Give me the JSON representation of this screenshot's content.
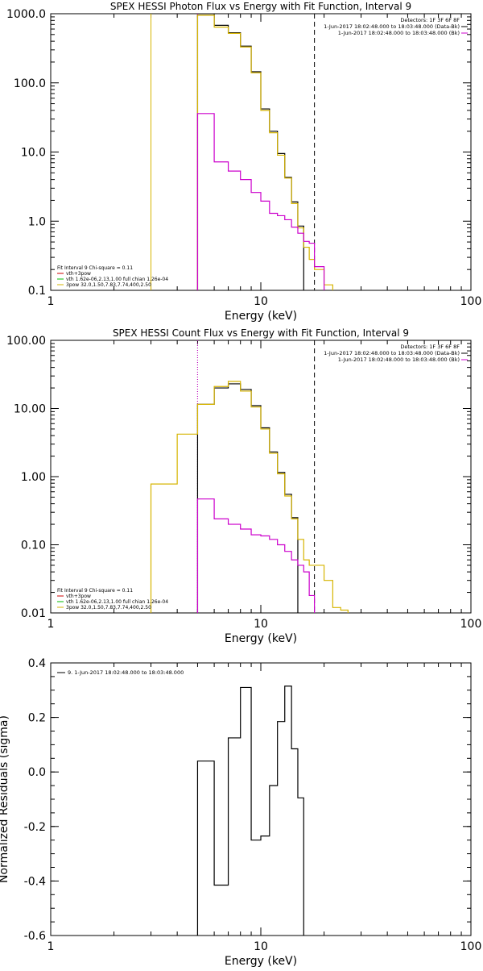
{
  "colors": {
    "black": "#000000",
    "yellow": "#d6b400",
    "magenta": "#cc00cc",
    "red": "#cc0000",
    "green": "#00bb00"
  },
  "chart_data": [
    {
      "type": "line",
      "title": "SPEX HESSI Photon Flux vs Energy with Fit Function, Interval 9",
      "xlabel": "Energy (keV)",
      "ylabel": "",
      "xscale": "log",
      "yscale": "log",
      "xlim": [
        1,
        100
      ],
      "ylim": [
        0.1,
        1000
      ],
      "xticks": [
        1,
        10,
        100
      ],
      "xticklabels": [
        "1",
        "10",
        "100"
      ],
      "yticks": [
        0.1,
        1,
        10,
        100,
        1000
      ],
      "yticklabels": [
        "0.1",
        "1.0",
        "10.0",
        "100.0",
        "1000.0"
      ],
      "vlines": [
        {
          "x": 3.0,
          "color": "yellow",
          "style": "solid"
        },
        {
          "x": 5.0,
          "color": "magenta",
          "style": "dotted"
        },
        {
          "x": 18.0,
          "color": "black",
          "style": "dashed"
        }
      ],
      "bin_edges": [
        5,
        6,
        7,
        8,
        9,
        10,
        11,
        12,
        13,
        14,
        15,
        16,
        17,
        18,
        20,
        22
      ],
      "series": [
        {
          "name": "Data",
          "color": "black",
          "values": [
            950,
            680,
            530,
            340,
            145,
            42,
            20,
            9.5,
            4.3,
            1.9,
            0.85,
            null,
            null,
            null,
            null
          ]
        },
        {
          "name": "vth+3pow",
          "color": "yellow",
          "values": [
            950,
            640,
            520,
            330,
            140,
            40,
            19,
            9,
            4.2,
            1.8,
            0.8,
            0.42,
            0.28,
            0.2,
            0.12
          ]
        },
        {
          "name": "Bk",
          "color": "magenta",
          "values": [
            36,
            7.2,
            5.3,
            4.0,
            2.6,
            1.95,
            1.3,
            1.2,
            1.05,
            0.82,
            0.67,
            0.51,
            0.48,
            0.22,
            null
          ]
        }
      ],
      "legend_topright": [
        "Detectors: 1F 3F 6F 8F",
        "1-Jun-2017 18:02:48.000 to 18:03:48.000 (Data-Bk)",
        "1-Jun-2017 18:02:48.000 to 18:03:48.000 (Bk)"
      ],
      "legend_bottomleft": [
        "Fit Interval 9   Chi-square = 0.11",
        "vth+3pow",
        "vth 1.62e-06,2.13,1.00   full chian 1.26e-04",
        "3pow 32.0,1.50,7.83,7.74,400,2.50"
      ]
    },
    {
      "type": "line",
      "title": "SPEX HESSI Count Flux vs Energy with Fit Function, Interval 9",
      "xlabel": "Energy (keV)",
      "ylabel": "",
      "xscale": "log",
      "yscale": "log",
      "xlim": [
        1,
        100
      ],
      "ylim": [
        0.01,
        100
      ],
      "xticks": [
        1,
        10,
        100
      ],
      "xticklabels": [
        "1",
        "10",
        "100"
      ],
      "yticks": [
        0.01,
        0.1,
        1,
        10,
        100
      ],
      "yticklabels": [
        "0.01",
        "0.10",
        "1.00",
        "10.00",
        "100.00"
      ],
      "vlines": [
        {
          "x": 5.0,
          "color": "black",
          "style": "dotted"
        },
        {
          "x": 5.0,
          "color": "magenta",
          "style": "dotted"
        },
        {
          "x": 18.0,
          "color": "black",
          "style": "dashed"
        }
      ],
      "bin_edges": [
        3,
        4,
        5,
        6,
        7,
        8,
        9,
        10,
        11,
        12,
        13,
        14,
        15,
        16,
        17,
        18,
        20,
        22,
        24,
        26
      ],
      "series": [
        {
          "name": "Data",
          "color": "black",
          "values": [
            null,
            null,
            11.5,
            20,
            23,
            19,
            11,
            5.2,
            2.3,
            1.15,
            0.55,
            0.25,
            null,
            null,
            null,
            null,
            null,
            null,
            null
          ]
        },
        {
          "name": "vth+3pow",
          "color": "yellow",
          "values": [
            0.78,
            4.2,
            11.5,
            21,
            25,
            18,
            10.5,
            5.0,
            2.2,
            1.1,
            0.52,
            0.24,
            0.12,
            0.06,
            0.05,
            0.05,
            0.03,
            0.012,
            0.011
          ]
        },
        {
          "name": "Bk",
          "color": "magenta",
          "values": [
            null,
            null,
            0.47,
            0.24,
            0.2,
            0.17,
            0.14,
            0.135,
            0.12,
            0.1,
            0.08,
            0.06,
            0.05,
            0.04,
            0.018,
            null,
            null,
            null,
            null
          ]
        }
      ],
      "legend_topright": [
        "Detectors: 1F 3F 6F 8F",
        "1-Jun-2017 18:02:48.000 to 18:03:48.000 (Data-Bk)",
        "1-Jun-2017 18:02:48.000 to 18:03:48.000 (Bk)"
      ],
      "legend_bottomleft": [
        "Fit Interval 9   Chi-square = 0.11",
        "vth+3pow",
        "vth 1.62e-06,2.13,1.00   full chian 1.26e-04",
        "3pow 32.0,1.50,7.83,7.74,400,2.50"
      ]
    },
    {
      "type": "line",
      "title": "",
      "xlabel": "Energy (keV)",
      "ylabel": "Normalized Residuals (sigma)",
      "xscale": "log",
      "yscale": "linear",
      "xlim": [
        1,
        100
      ],
      "ylim": [
        -0.6,
        0.4
      ],
      "xticks": [
        1,
        10,
        100
      ],
      "xticklabels": [
        "1",
        "10",
        "100"
      ],
      "yticks": [
        -0.6,
        -0.4,
        -0.2,
        0.0,
        0.2,
        0.4
      ],
      "yticklabels": [
        "-0.6",
        "-0.4",
        "-0.2",
        "0.0",
        "0.2",
        "0.4"
      ],
      "bin_edges": [
        5,
        6,
        7,
        8,
        9,
        10,
        11,
        12,
        13,
        14,
        15,
        16,
        17,
        18
      ],
      "series": [
        {
          "name": "9.  1-Jun-2017 18:02:48.000 to 18:03:48.000",
          "color": "black",
          "values": [
            0.04,
            -0.415,
            0.125,
            0.31,
            -0.25,
            -0.235,
            -0.05,
            0.185,
            0.315,
            0.085,
            -0.095,
            null,
            null
          ],
          "baseline": -0.6
        }
      ],
      "legend_topleft": [
        "9.  1-Jun-2017 18:02:48.000 to 18:03:48.000"
      ]
    }
  ]
}
